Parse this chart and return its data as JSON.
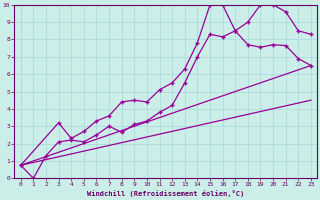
{
  "xlabel": "Windchill (Refroidissement éolien,°C)",
  "background_color": "#cceee8",
  "grid_color": "#aadddd",
  "line_color": "#990099",
  "xlim": [
    -0.5,
    23.5
  ],
  "ylim": [
    0,
    10
  ],
  "xticks": [
    0,
    1,
    2,
    3,
    4,
    5,
    6,
    7,
    8,
    9,
    10,
    11,
    12,
    13,
    14,
    15,
    16,
    17,
    18,
    19,
    20,
    21,
    22,
    23
  ],
  "yticks": [
    0,
    1,
    2,
    3,
    4,
    5,
    6,
    7,
    8,
    9,
    10
  ],
  "line1_x": [
    0,
    1,
    2,
    3,
    4,
    5,
    6,
    7,
    8,
    9,
    10,
    11,
    12,
    13,
    14,
    15,
    16,
    17,
    18,
    19,
    20,
    21,
    22,
    23
  ],
  "line1_y": [
    0.75,
    0.0,
    1.3,
    2.1,
    2.2,
    2.1,
    2.5,
    3.0,
    2.65,
    3.1,
    3.3,
    3.8,
    4.2,
    5.5,
    7.0,
    8.3,
    8.15,
    8.5,
    9.0,
    10.0,
    10.0,
    9.6,
    8.5,
    8.3
  ],
  "line2_x": [
    0,
    3,
    4,
    5,
    6,
    7,
    8,
    9,
    10,
    11,
    12,
    13,
    14,
    15,
    16,
    17,
    18,
    19,
    20,
    21,
    22,
    23
  ],
  "line2_y": [
    0.75,
    3.2,
    2.3,
    2.7,
    3.3,
    3.6,
    4.4,
    4.5,
    4.4,
    5.1,
    5.5,
    6.3,
    7.8,
    10.0,
    10.0,
    8.5,
    7.7,
    7.55,
    7.7,
    7.65,
    6.9,
    6.5
  ],
  "line3_x": [
    0,
    23
  ],
  "line3_y": [
    0.75,
    6.5
  ],
  "line4_x": [
    0,
    23
  ],
  "line4_y": [
    0.75,
    4.5
  ]
}
